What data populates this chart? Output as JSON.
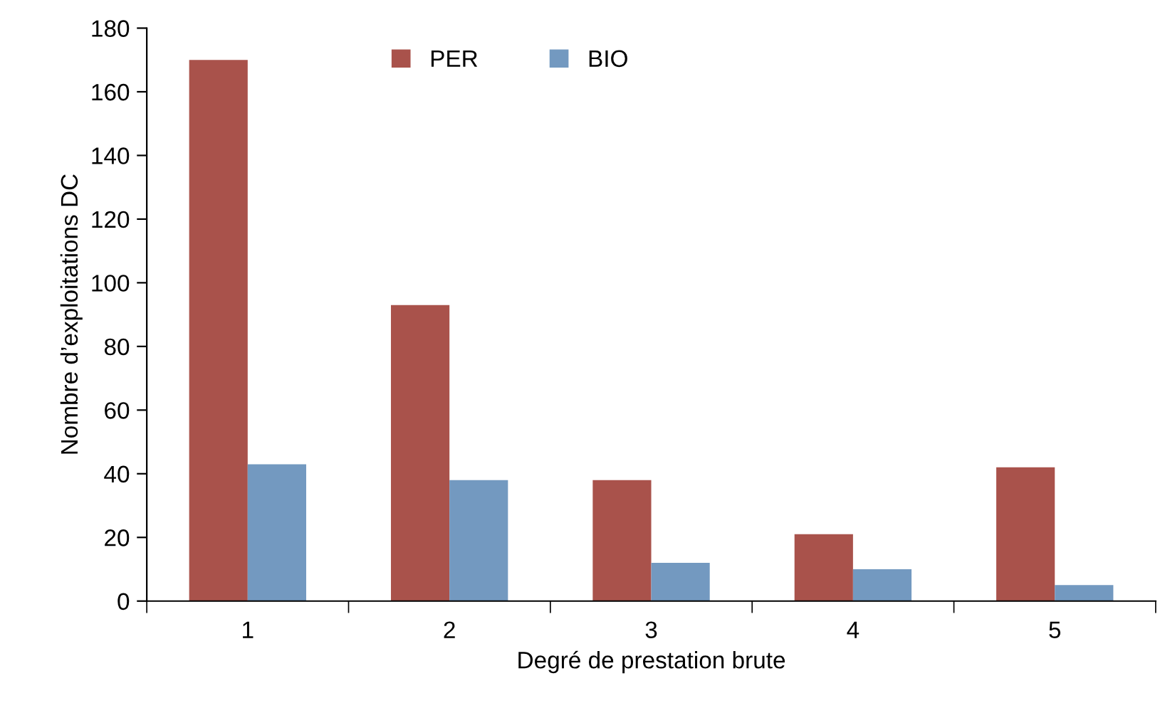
{
  "chart_data": {
    "type": "bar",
    "xlabel": "Degré de prestation brute",
    "ylabel": "Nombre d’exploitations DC",
    "categories": [
      "1",
      "2",
      "3",
      "4",
      "5"
    ],
    "series": [
      {
        "name": "PER",
        "color": "#a9524b",
        "values": [
          170,
          93,
          38,
          21,
          42
        ]
      },
      {
        "name": "BIO",
        "color": "#7399c0",
        "values": [
          43,
          38,
          12,
          10,
          5
        ]
      }
    ],
    "ylim": [
      0,
      180
    ],
    "yticks": [
      0,
      20,
      40,
      60,
      80,
      100,
      120,
      140,
      160,
      180
    ],
    "grid": false,
    "legend": "top"
  }
}
